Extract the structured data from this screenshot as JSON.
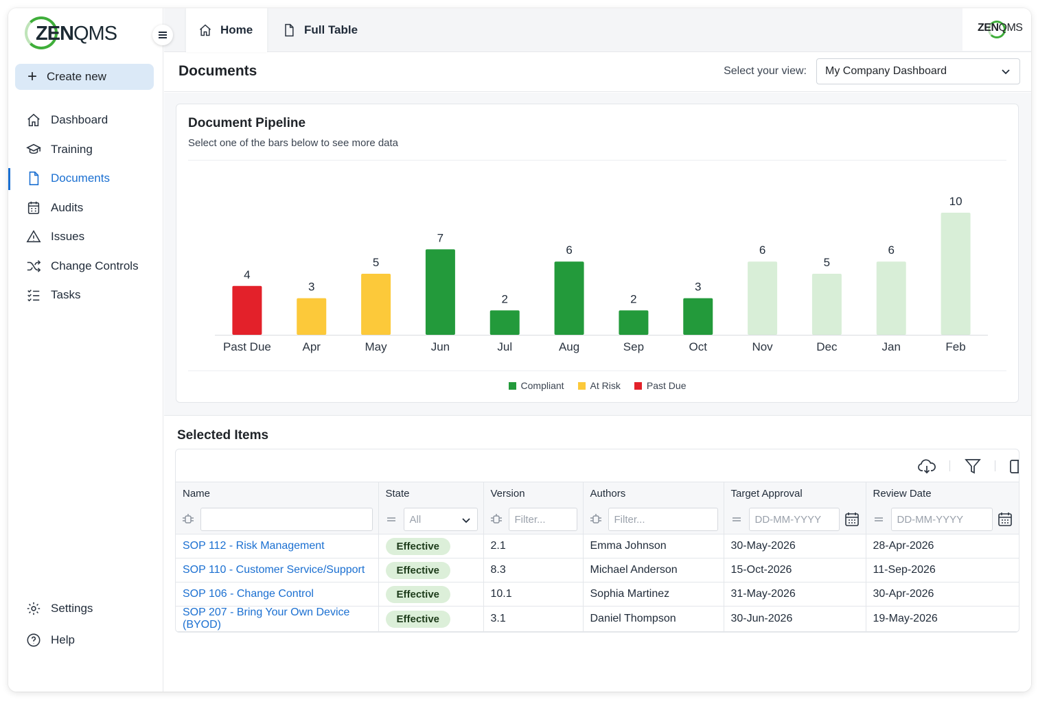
{
  "brand": {
    "logo_text_bold": "ZEN",
    "logo_text_light": "QMS",
    "logo_green": "#3fae3a"
  },
  "sidebar": {
    "create_label": "Create new",
    "items": [
      {
        "label": "Dashboard",
        "icon": "home-icon"
      },
      {
        "label": "Training",
        "icon": "graduation-cap-icon"
      },
      {
        "label": "Documents",
        "icon": "document-icon",
        "active": true
      },
      {
        "label": "Audits",
        "icon": "calendar-icon"
      },
      {
        "label": "Issues",
        "icon": "warning-icon"
      },
      {
        "label": "Change Controls",
        "icon": "shuffle-icon"
      },
      {
        "label": "Tasks",
        "icon": "checklist-icon"
      }
    ],
    "bottom_items": [
      {
        "label": "Settings",
        "icon": "gear-icon"
      },
      {
        "label": "Help",
        "icon": "help-icon"
      }
    ]
  },
  "tabs": [
    {
      "label": "Home",
      "icon": "home-icon",
      "active": true
    },
    {
      "label": "Full Table",
      "icon": "document-icon"
    }
  ],
  "header": {
    "title": "Documents",
    "view_label": "Select your view:",
    "view_value": "My Company Dashboard"
  },
  "chart_card": {
    "title": "Document Pipeline",
    "subtitle": "Select one of the bars below to see more data"
  },
  "chart_data": {
    "type": "bar",
    "categories": [
      "Past Due",
      "Apr",
      "May",
      "Jun",
      "Jul",
      "Aug",
      "Sep",
      "Oct",
      "Nov",
      "Dec",
      "Jan",
      "Feb"
    ],
    "values": [
      4,
      3,
      5,
      7,
      2,
      6,
      2,
      3,
      6,
      5,
      6,
      10
    ],
    "bar_colors": [
      "#e3212a",
      "#fcc93a",
      "#fcc93a",
      "#239a3b",
      "#239a3b",
      "#239a3b",
      "#239a3b",
      "#239a3b",
      "#d8eed7",
      "#d8eed7",
      "#d8eed7",
      "#d8eed7"
    ],
    "legend": [
      {
        "name": "Compliant",
        "color": "#239a3b"
      },
      {
        "name": "At Risk",
        "color": "#fcc93a"
      },
      {
        "name": "Past Due",
        "color": "#e3212a"
      }
    ],
    "title": "Document Pipeline",
    "xlabel": "",
    "ylabel": "",
    "ylim": [
      0,
      10
    ],
    "grid": false,
    "legend_position": "bottom-center"
  },
  "selected": {
    "title": "Selected Items",
    "columns": [
      "Name",
      "State",
      "Version",
      "Authors",
      "Target Approval",
      "Review Date"
    ],
    "filters": {
      "name": "",
      "state": "All",
      "version_placeholder": "Filter...",
      "authors_placeholder": "Filter...",
      "target_placeholder": "DD-MM-YYYY",
      "review_placeholder": "DD-MM-YYYY"
    },
    "rows": [
      {
        "name": "SOP 112 - Risk Management",
        "state": "Effective",
        "version": "2.1",
        "author": "Emma Johnson",
        "target": "30-May-2026",
        "review": "28-Apr-2026"
      },
      {
        "name": "SOP 110 - Customer Service/Support",
        "state": "Effective",
        "version": "8.3",
        "author": "Michael Anderson",
        "target": "15-Oct-2026",
        "review": "11-Sep-2026"
      },
      {
        "name": "SOP 106 - Change Control",
        "state": "Effective",
        "version": "10.1",
        "author": "Sophia Martinez",
        "target": "31-May-2026",
        "review": "30-Apr-2026"
      },
      {
        "name": "SOP 207 - Bring Your Own Device (BYOD)",
        "state": "Effective",
        "version": "3.1",
        "author": "Daniel Thompson",
        "target": "30-Jun-2026",
        "review": "19-May-2026"
      }
    ]
  },
  "colors": {
    "accent": "#1a6fd1",
    "badge_bg": "#dcefd9"
  }
}
